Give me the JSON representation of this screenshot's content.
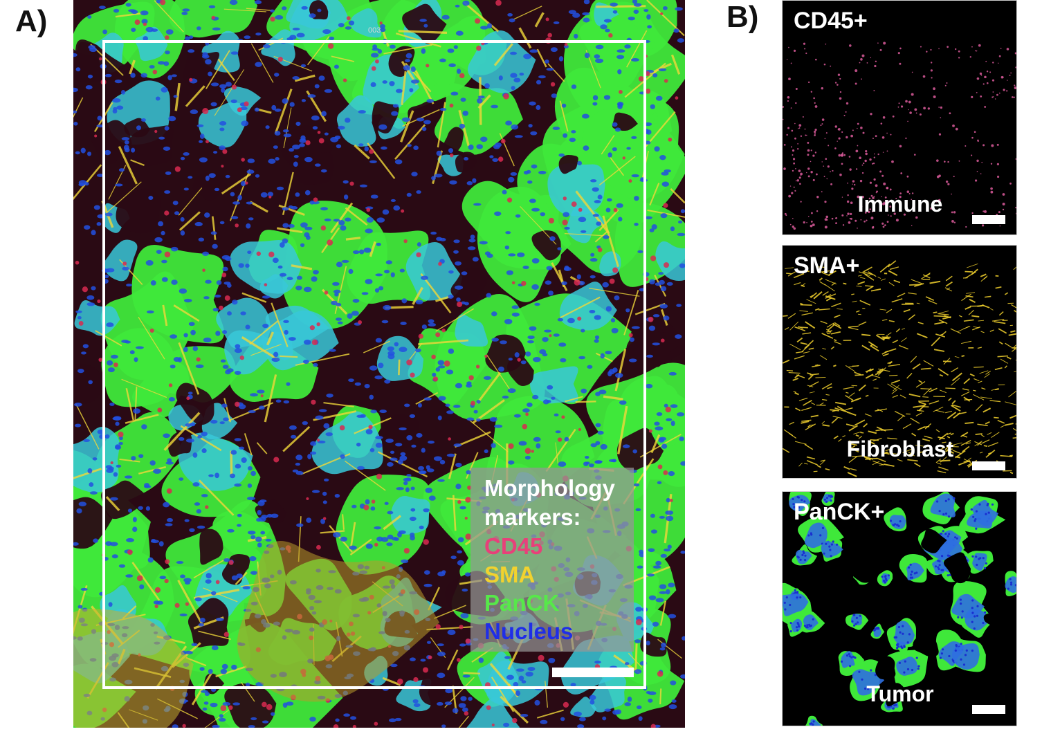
{
  "panel_a": {
    "letter": "A)",
    "roi_id": "003",
    "legend": {
      "heading_line1": "Morphology",
      "heading_line2": "markers:",
      "markers": [
        {
          "label": "CD45",
          "color": "#e8407a"
        },
        {
          "label": "SMA",
          "color": "#f2d22e"
        },
        {
          "label": "PanCK",
          "color": "#57e84a"
        },
        {
          "label": "Nucleus",
          "color": "#1f2ee8"
        }
      ]
    }
  },
  "panel_b": {
    "letter": "B)",
    "thumbnails": [
      {
        "marker": "CD45+",
        "cell_type": "Immune",
        "color": "#d95a9a"
      },
      {
        "marker": "SMA+",
        "cell_type": "Fibroblast",
        "color": "#f2d22e"
      },
      {
        "marker": "PanCK+",
        "cell_type": "Tumor",
        "color": "#57e84a"
      }
    ]
  },
  "image_palette": {
    "background": "#0a0a1a",
    "tumor_green": "#3fe83a",
    "cytoplasm_cyan": "#38c8d8",
    "nucleus_blue": "#2250e0",
    "stroma_dark": "#2a0a14",
    "immune_red": "#d82a50",
    "fibroblast_yellow": "#f0d83a"
  }
}
